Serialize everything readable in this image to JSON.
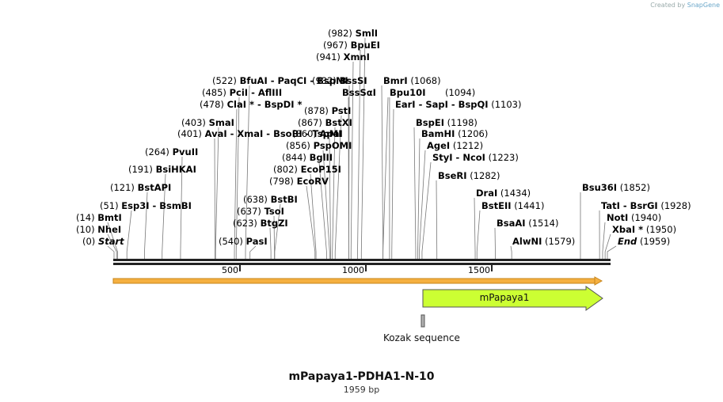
{
  "credit": {
    "prefix": "Created by",
    "brand": "SnapGene"
  },
  "title": "mPapaya1-PDHA1-N-10",
  "subtitle": "1959 bp",
  "sequence_length": 1959,
  "ticks": [
    {
      "pos": 500,
      "label": "500"
    },
    {
      "pos": 1000,
      "label": "1000"
    },
    {
      "pos": 1500,
      "label": "1500"
    }
  ],
  "features": [
    {
      "name": "mPapaya1",
      "start": 1210,
      "end": 1959,
      "color": "#ccff33",
      "kind": "arrow"
    },
    {
      "name": "Kozak sequence",
      "start": 1204,
      "end": 1213,
      "color": "#b0b0b0",
      "kind": "box"
    }
  ],
  "sites": [
    {
      "pos": 0,
      "pos_text": "(0)",
      "names": "Start",
      "italic": true
    },
    {
      "pos": 10,
      "pos_text": "(10)",
      "names": "NheI"
    },
    {
      "pos": 14,
      "pos_text": "(14)",
      "names": "BmtI"
    },
    {
      "pos": 51,
      "pos_text": "(51)",
      "names": "Esp3I  - BsmBI"
    },
    {
      "pos": 121,
      "pos_text": "(121)",
      "names": "BstAPI"
    },
    {
      "pos": 191,
      "pos_text": "(191)",
      "names": "BsiHKAI"
    },
    {
      "pos": 264,
      "pos_text": "(264)",
      "names": "PvuII"
    },
    {
      "pos": 401,
      "pos_text": "(401)",
      "names": "AvaI  - XmaI  - BsoBI  - TspMI"
    },
    {
      "pos": 403,
      "pos_text": "(403)",
      "names": "SmaI"
    },
    {
      "pos": 478,
      "pos_text": "(478)",
      "names": "ClaI *  - BspDI *"
    },
    {
      "pos": 485,
      "pos_text": "(485)",
      "names": "PciI  - AflIII"
    },
    {
      "pos": 522,
      "pos_text": "(522)",
      "names": "BfuAI  - PaqCI  - BspMI"
    },
    {
      "pos": 540,
      "pos_text": "(540)",
      "names": "PasI"
    },
    {
      "pos": 623,
      "pos_text": "(623)",
      "names": "BtgZI"
    },
    {
      "pos": 637,
      "pos_text": "(637)",
      "names": "TsoI"
    },
    {
      "pos": 638,
      "pos_text": "(638)",
      "names": "BstBI"
    },
    {
      "pos": 798,
      "pos_text": "(798)",
      "names": "EcoRV"
    },
    {
      "pos": 802,
      "pos_text": "(802)",
      "names": "EcoP15I"
    },
    {
      "pos": 844,
      "pos_text": "(844)",
      "names": "BglII"
    },
    {
      "pos": 856,
      "pos_text": "(856)",
      "names": "PspOMI"
    },
    {
      "pos": 860,
      "pos_text": "(860)",
      "names": "ApaI"
    },
    {
      "pos": 867,
      "pos_text": "(867)",
      "names": "BstXI"
    },
    {
      "pos": 878,
      "pos_text": "(878)",
      "names": "PstI"
    },
    {
      "pos": 932,
      "pos_text": "",
      "names": "BssSαI"
    },
    {
      "pos": 932,
      "pos_text": "(932)",
      "names": "BssSI"
    },
    {
      "pos": 941,
      "pos_text": "(941)",
      "names": "XmnI"
    },
    {
      "pos": 967,
      "pos_text": "(967)",
      "names": "BpuEI"
    },
    {
      "pos": 982,
      "pos_text": "(982)",
      "names": "SmlI"
    },
    {
      "pos": 1068,
      "pos_text": "(1068)",
      "names": "BmrI"
    },
    {
      "pos": 1068,
      "pos_text": "",
      "names": "Bpu10I"
    },
    {
      "pos": 1094,
      "pos_text": "(1094)",
      "names": ""
    },
    {
      "pos": 1103,
      "pos_text": "(1103)",
      "names": "EarI  - SapI  - BspQI"
    },
    {
      "pos": 1198,
      "pos_text": "(1198)",
      "names": "BspEI"
    },
    {
      "pos": 1206,
      "pos_text": "(1206)",
      "names": "BamHI"
    },
    {
      "pos": 1212,
      "pos_text": "(1212)",
      "names": "AgeI"
    },
    {
      "pos": 1223,
      "pos_text": "(1223)",
      "names": "StyI  - NcoI"
    },
    {
      "pos": 1282,
      "pos_text": "(1282)",
      "names": "BseRI"
    },
    {
      "pos": 1434,
      "pos_text": "(1434)",
      "names": "DraI"
    },
    {
      "pos": 1441,
      "pos_text": "(1441)",
      "names": "BstEII"
    },
    {
      "pos": 1514,
      "pos_text": "(1514)",
      "names": "BsaAI"
    },
    {
      "pos": 1579,
      "pos_text": "(1579)",
      "names": "AlwNI"
    },
    {
      "pos": 1852,
      "pos_text": "(1852)",
      "names": "Bsu36I"
    },
    {
      "pos": 1928,
      "pos_text": "(1928)",
      "names": "TatI  - BsrGI"
    },
    {
      "pos": 1940,
      "pos_text": "(1940)",
      "names": "NotI"
    },
    {
      "pos": 1950,
      "pos_text": "(1950)",
      "names": "XbaI *"
    },
    {
      "pos": 1959,
      "pos_text": "(1959)",
      "names": "End",
      "italic": true
    }
  ]
}
